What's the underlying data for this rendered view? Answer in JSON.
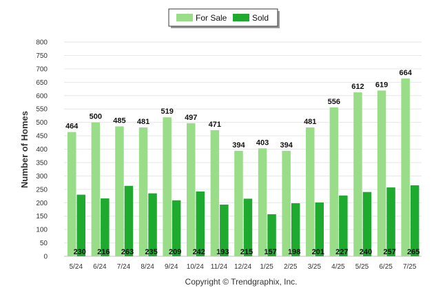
{
  "chart_data": {
    "type": "bar",
    "categories": [
      "5/24",
      "6/24",
      "7/24",
      "8/24",
      "9/24",
      "10/24",
      "11/24",
      "12/24",
      "1/25",
      "2/25",
      "3/25",
      "4/25",
      "5/25",
      "6/25",
      "7/25"
    ],
    "series": [
      {
        "name": "For Sale",
        "color": "#99dd88",
        "values": [
          464,
          500,
          485,
          481,
          519,
          497,
          471,
          394,
          403,
          394,
          481,
          556,
          612,
          619,
          664
        ]
      },
      {
        "name": "Sold",
        "color": "#1eaa2e",
        "values": [
          230,
          216,
          263,
          235,
          209,
          242,
          193,
          215,
          157,
          198,
          201,
          227,
          240,
          257,
          265
        ]
      }
    ],
    "ylabel": "Number of Homes",
    "ylim": [
      0,
      800
    ],
    "yticks": [
      0,
      50,
      100,
      150,
      200,
      250,
      300,
      350,
      400,
      450,
      500,
      550,
      600,
      650,
      700,
      750,
      800
    ],
    "legend_position": "top-center",
    "grid": true
  },
  "footer": {
    "copyright": "Copyright © Trendgraphix, Inc."
  }
}
